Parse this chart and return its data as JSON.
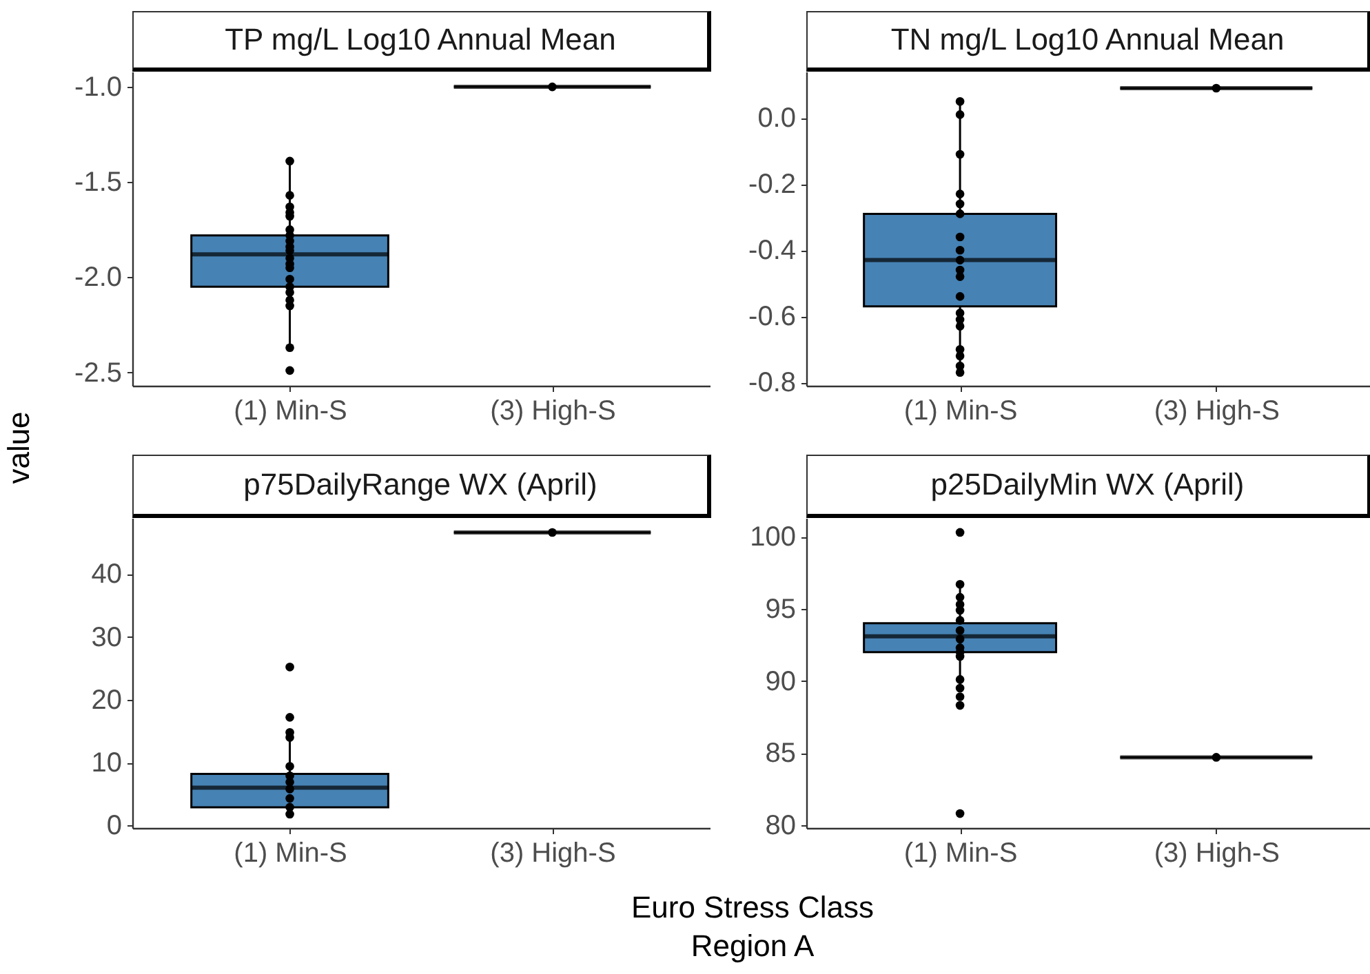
{
  "chart_data": [
    {
      "type": "box",
      "title": "TP mg/L Log10 Annual Mean",
      "ylabel": "value",
      "categories": [
        "(1) Min-S",
        "(3) High-S"
      ],
      "ylim": [
        -2.57,
        -0.92
      ],
      "yticks": [
        {
          "value": -1,
          "label": "-1.0"
        },
        -1.5,
        {
          "value": -2,
          "label": "-2.0"
        },
        -2.5
      ],
      "marker": "circle",
      "series": [
        {
          "type": "box",
          "colors": [
            "#4682b4",
            "#000000"
          ],
          "boxes": [
            {
              "low": -2.37,
              "q1": -2.05,
              "median": -1.88,
              "q3": -1.78,
              "high": -1.39
            },
            {
              "low": -1.0,
              "q1": -1.0,
              "median": -1.0,
              "q3": -1.0,
              "high": -1.0
            }
          ]
        },
        {
          "type": "scatter",
          "color": "#000000",
          "x": [
            "(1) Min-S",
            "(1) Min-S",
            "(1) Min-S",
            "(1) Min-S",
            "(1) Min-S",
            "(1) Min-S",
            "(1) Min-S",
            "(1) Min-S",
            "(1) Min-S",
            "(1) Min-S",
            "(1) Min-S",
            "(1) Min-S",
            "(1) Min-S",
            "(1) Min-S",
            "(1) Min-S",
            "(1) Min-S",
            "(1) Min-S",
            "(1) Min-S",
            "(1) Min-S",
            "(1) Min-S",
            "(3) High-S"
          ],
          "values": [
            -1.39,
            -1.57,
            -1.63,
            -1.66,
            -1.68,
            -1.75,
            -1.78,
            -1.81,
            -1.84,
            -1.9,
            -1.93,
            -1.95,
            -2.01,
            -2.05,
            -2.08,
            -2.12,
            -2.15,
            -2.37,
            -2.49,
            -1.86,
            -1.0
          ]
        }
      ]
    },
    {
      "type": "box",
      "title": "TN mg/L Log10 Annual Mean",
      "categories": [
        "(1) Min-S",
        "(3) High-S"
      ],
      "ylim": [
        -0.81,
        0.14
      ],
      "yticks": [
        {
          "value": 0,
          "label": "0.0"
        },
        -0.2,
        -0.4,
        -0.6,
        -0.8
      ],
      "marker": "circle",
      "series": [
        {
          "type": "box",
          "colors": [
            "#4682b4",
            "#000000"
          ],
          "boxes": [
            {
              "low": -0.77,
              "q1": -0.57,
              "median": -0.43,
              "q3": -0.29,
              "high": 0.05
            },
            {
              "low": 0.09,
              "q1": 0.09,
              "median": 0.09,
              "q3": 0.09,
              "high": 0.09
            }
          ]
        },
        {
          "type": "scatter",
          "color": "#000000",
          "x": [
            "(1) Min-S",
            "(1) Min-S",
            "(1) Min-S",
            "(1) Min-S",
            "(1) Min-S",
            "(1) Min-S",
            "(1) Min-S",
            "(1) Min-S",
            "(1) Min-S",
            "(1) Min-S",
            "(1) Min-S",
            "(1) Min-S",
            "(1) Min-S",
            "(1) Min-S",
            "(1) Min-S",
            "(1) Min-S",
            "(1) Min-S",
            "(1) Min-S",
            "(1) Min-S",
            "(1) Min-S",
            "(3) High-S"
          ],
          "values": [
            0.05,
            0.01,
            -0.11,
            -0.23,
            -0.26,
            -0.29,
            -0.36,
            -0.4,
            -0.43,
            -0.46,
            -0.48,
            null,
            -0.54,
            -0.59,
            -0.61,
            -0.63,
            -0.7,
            -0.72,
            -0.75,
            -0.77,
            0.09
          ]
        }
      ]
    },
    {
      "type": "box",
      "title": "p75DailyRange WX (April)",
      "xlabel": "Euro Stress Class\nRegion A",
      "categories": [
        "(1) Min-S",
        "(3) High-S"
      ],
      "ylim": [
        -0.4,
        48.9
      ],
      "yticks": [
        0,
        10,
        20,
        30,
        40
      ],
      "marker": "circle",
      "series": [
        {
          "type": "box",
          "colors": [
            "#4682b4",
            "#000000"
          ],
          "boxes": [
            {
              "low": 1.8,
              "q1": 2.9,
              "median": 6.0,
              "q3": 8.2,
              "high": 14.8
            },
            {
              "low": 46.6,
              "q1": 46.6,
              "median": 46.6,
              "q3": 46.6,
              "high": 46.6
            }
          ]
        },
        {
          "type": "scatter",
          "color": "#000000",
          "x": [
            "(1) Min-S",
            "(1) Min-S",
            "(1) Min-S",
            "(1) Min-S",
            "(1) Min-S",
            "(1) Min-S",
            "(1) Min-S",
            "(1) Min-S",
            "(1) Min-S",
            "(1) Min-S",
            "(1) Min-S",
            "(3) High-S"
          ],
          "values": [
            25.2,
            17.2,
            14.8,
            14.0,
            9.4,
            7.9,
            5.8,
            4.3,
            2.9,
            1.8,
            6.9,
            46.6
          ]
        }
      ]
    },
    {
      "type": "box",
      "title": "p25DailyMin WX (April)",
      "categories": [
        "(1) Min-S",
        "(3) High-S"
      ],
      "ylim": [
        79.8,
        101.3
      ],
      "yticks": [
        80,
        85,
        90,
        95,
        100
      ],
      "marker": "circle",
      "series": [
        {
          "type": "box",
          "colors": [
            "#4682b4",
            "#000000"
          ],
          "boxes": [
            {
              "low": 89.5,
              "q1": 92.0,
              "median": 93.1,
              "q3": 94.0,
              "high": 96.7
            },
            {
              "low": 84.7,
              "q1": 84.7,
              "median": 84.7,
              "q3": 84.7,
              "high": 84.7
            }
          ]
        },
        {
          "type": "scatter",
          "color": "#000000",
          "x": [
            "(1) Min-S",
            "(1) Min-S",
            "(1) Min-S",
            "(1) Min-S",
            "(1) Min-S",
            "(1) Min-S",
            "(1) Min-S",
            "(1) Min-S",
            "(1) Min-S",
            "(1) Min-S",
            "(1) Min-S",
            "(1) Min-S",
            "(1) Min-S",
            "(1) Min-S",
            "(1) Min-S",
            "(1) Min-S",
            "(3) High-S"
          ],
          "values": [
            100.3,
            96.7,
            95.8,
            95.3,
            94.9,
            94.2,
            93.5,
            92.9,
            92.3,
            92.0,
            91.7,
            90.1,
            89.5,
            88.9,
            88.3,
            80.8,
            84.7
          ]
        }
      ]
    }
  ]
}
